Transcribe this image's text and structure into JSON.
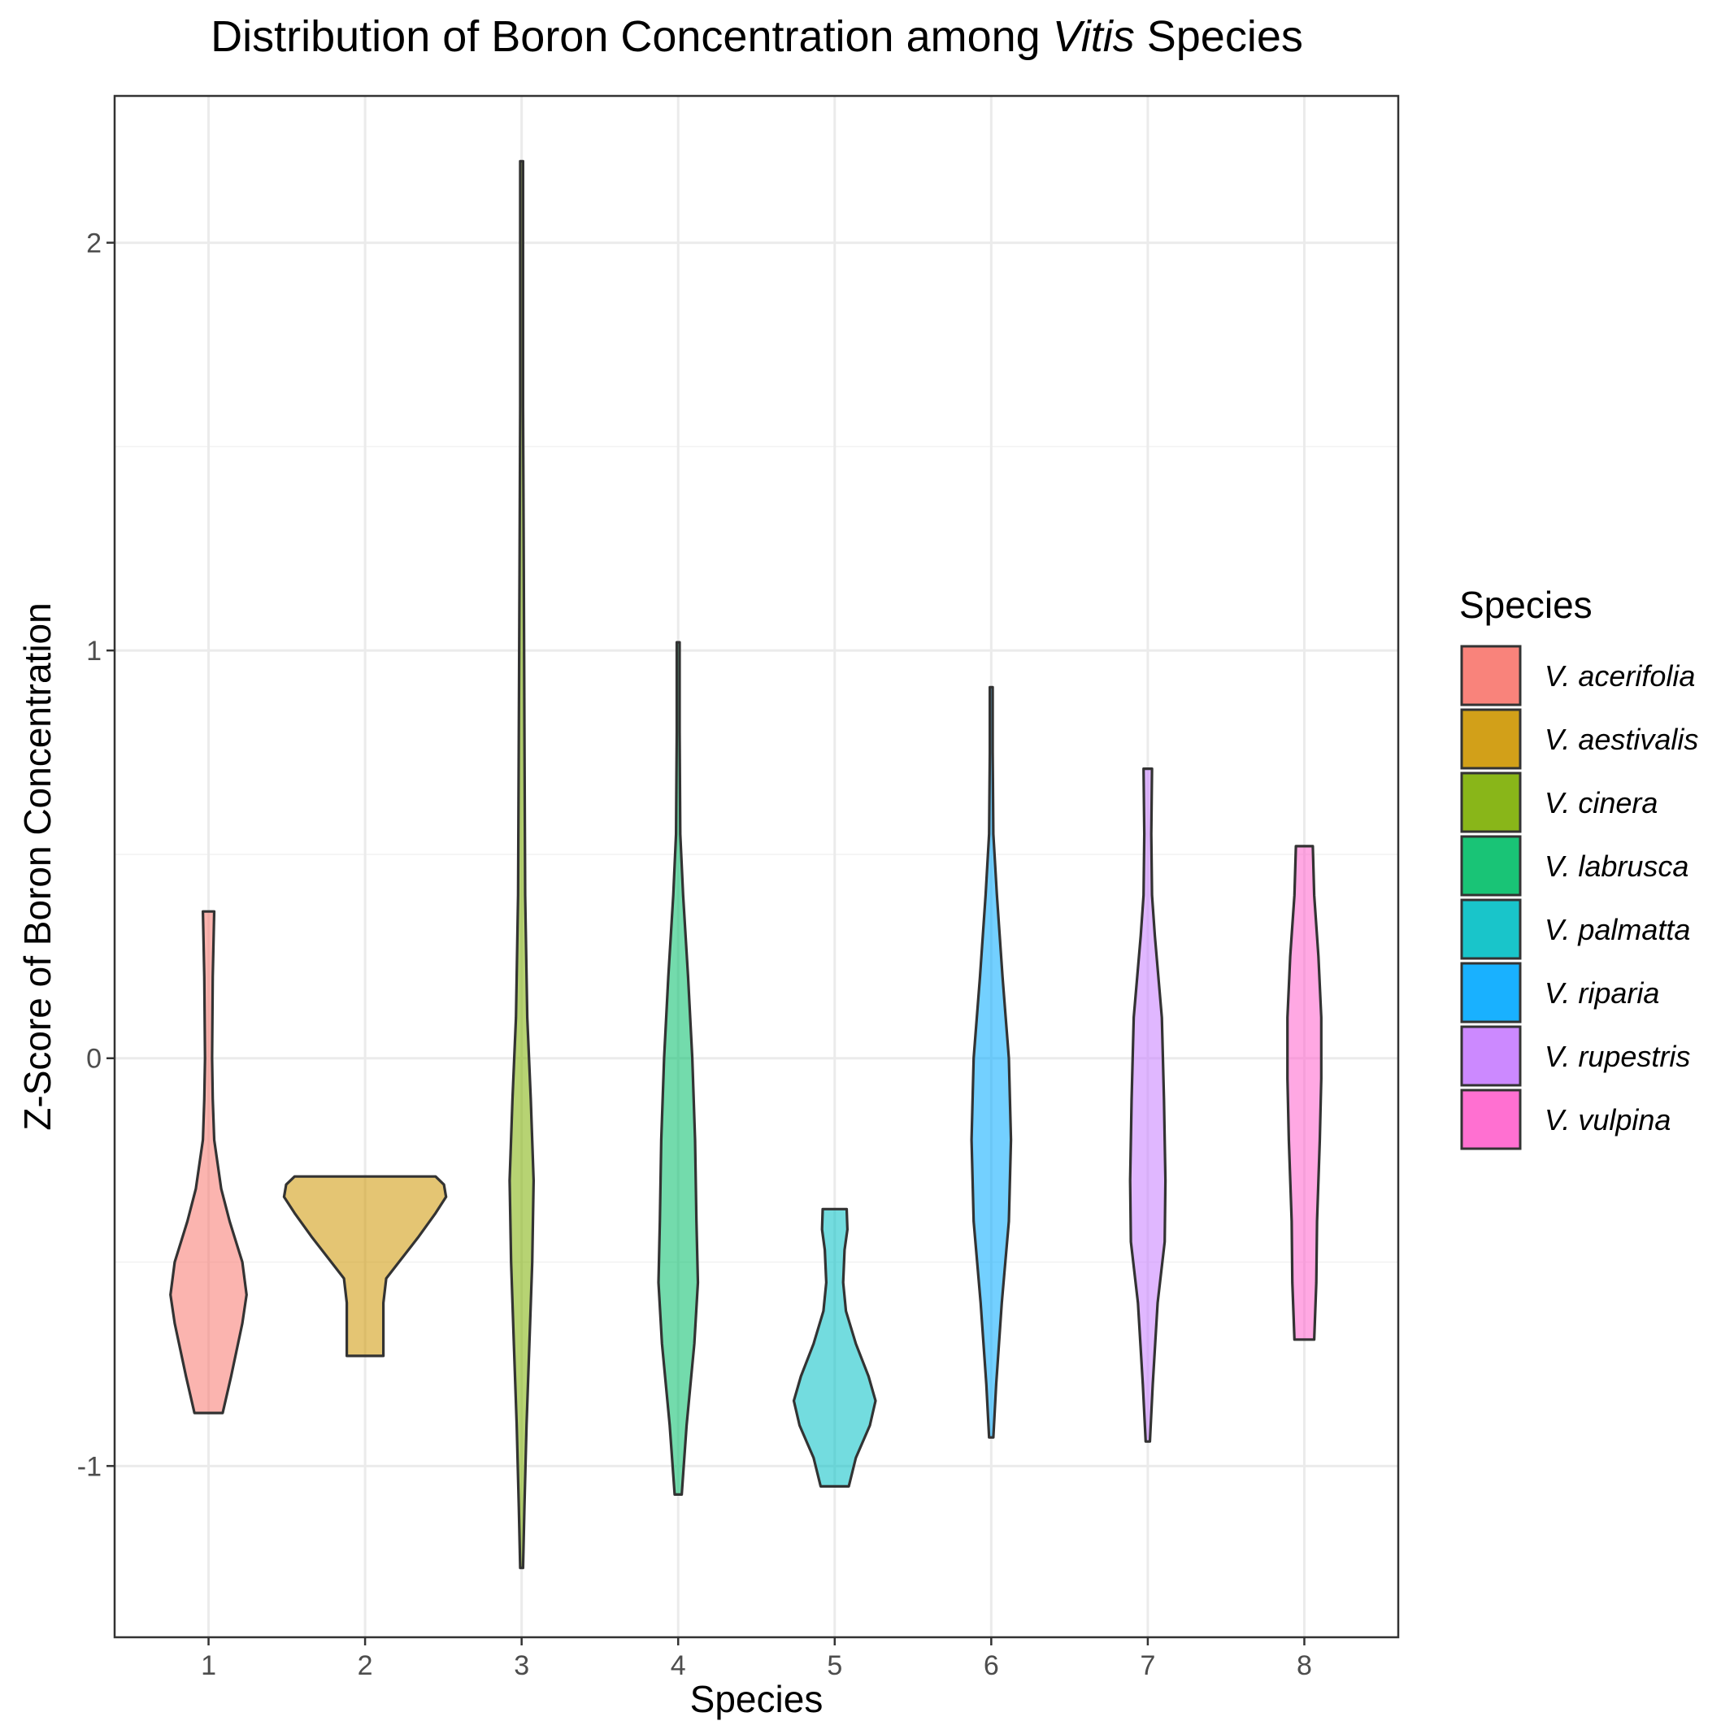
{
  "chart_data": {
    "type": "violin",
    "title_parts": [
      "Distribution of Boron Concentration among ",
      "Vitis",
      " Species"
    ],
    "xlabel": "Species",
    "ylabel": "Z-Score of Boron Concentration",
    "categories": [
      "1",
      "2",
      "3",
      "4",
      "5",
      "6",
      "7",
      "8"
    ],
    "ylim": [
      -1.42,
      2.36
    ],
    "yticks": [
      -1,
      0,
      1,
      2
    ],
    "ytick_labels": [
      "-1",
      "0",
      "1",
      "2"
    ],
    "grid": true,
    "legend": {
      "title": "Species",
      "position": "right",
      "entries": [
        {
          "label": "V. acerifolia",
          "color": "#F8766D"
        },
        {
          "label": "V. aestivalis",
          "color": "#CD9600"
        },
        {
          "label": "V. cinera",
          "color": "#7CAE00"
        },
        {
          "label": "V. labrusca",
          "color": "#00BE67"
        },
        {
          "label": "V. palmatta",
          "color": "#00BFC4"
        },
        {
          "label": "V. riparia",
          "color": "#00A9FF"
        },
        {
          "label": "V. rupestris",
          "color": "#C77CFF"
        },
        {
          "label": "V. vulpina",
          "color": "#FF61CC"
        }
      ]
    },
    "series": [
      {
        "category": "1",
        "min": -0.87,
        "max": 0.36,
        "profile": [
          [
            -0.87,
            0.2
          ],
          [
            -0.78,
            0.32
          ],
          [
            -0.65,
            0.48
          ],
          [
            -0.58,
            0.54
          ],
          [
            -0.5,
            0.48
          ],
          [
            -0.4,
            0.3
          ],
          [
            -0.32,
            0.18
          ],
          [
            -0.2,
            0.08
          ],
          [
            -0.1,
            0.06
          ],
          [
            0.0,
            0.05
          ],
          [
            0.2,
            0.06
          ],
          [
            0.36,
            0.08
          ]
        ]
      },
      {
        "category": "2",
        "min": -0.73,
        "max": -0.29,
        "profile": [
          [
            -0.73,
            0.26
          ],
          [
            -0.66,
            0.26
          ],
          [
            -0.6,
            0.26
          ],
          [
            -0.54,
            0.3
          ],
          [
            -0.5,
            0.48
          ],
          [
            -0.44,
            0.75
          ],
          [
            -0.38,
            1.0
          ],
          [
            -0.34,
            1.15
          ],
          [
            -0.31,
            1.12
          ],
          [
            -0.29,
            1.0
          ]
        ]
      },
      {
        "category": "3",
        "min": -1.25,
        "max": 2.2,
        "profile": [
          [
            -1.25,
            0.02
          ],
          [
            -1.1,
            0.04
          ],
          [
            -0.9,
            0.07
          ],
          [
            -0.7,
            0.11
          ],
          [
            -0.5,
            0.15
          ],
          [
            -0.3,
            0.17
          ],
          [
            -0.1,
            0.13
          ],
          [
            0.1,
            0.08
          ],
          [
            0.4,
            0.05
          ],
          [
            0.8,
            0.04
          ],
          [
            1.2,
            0.03
          ],
          [
            1.6,
            0.02
          ],
          [
            2.0,
            0.02
          ],
          [
            2.2,
            0.02
          ]
        ]
      },
      {
        "category": "4",
        "min": -1.07,
        "max": 1.02,
        "profile": [
          [
            -1.07,
            0.05
          ],
          [
            -0.9,
            0.12
          ],
          [
            -0.7,
            0.23
          ],
          [
            -0.55,
            0.28
          ],
          [
            -0.4,
            0.26
          ],
          [
            -0.2,
            0.24
          ],
          [
            0.0,
            0.2
          ],
          [
            0.2,
            0.14
          ],
          [
            0.4,
            0.07
          ],
          [
            0.55,
            0.03
          ],
          [
            0.8,
            0.02
          ],
          [
            1.02,
            0.02
          ]
        ]
      },
      {
        "category": "5",
        "min": -1.05,
        "max": -0.37,
        "profile": [
          [
            -1.05,
            0.2
          ],
          [
            -0.98,
            0.3
          ],
          [
            -0.9,
            0.5
          ],
          [
            -0.84,
            0.58
          ],
          [
            -0.78,
            0.48
          ],
          [
            -0.7,
            0.3
          ],
          [
            -0.62,
            0.16
          ],
          [
            -0.55,
            0.12
          ],
          [
            -0.47,
            0.14
          ],
          [
            -0.42,
            0.18
          ],
          [
            -0.37,
            0.17
          ]
        ]
      },
      {
        "category": "6",
        "min": -0.93,
        "max": 0.91,
        "profile": [
          [
            -0.93,
            0.03
          ],
          [
            -0.8,
            0.07
          ],
          [
            -0.6,
            0.15
          ],
          [
            -0.4,
            0.25
          ],
          [
            -0.2,
            0.28
          ],
          [
            0.0,
            0.25
          ],
          [
            0.2,
            0.16
          ],
          [
            0.4,
            0.08
          ],
          [
            0.55,
            0.03
          ],
          [
            0.75,
            0.02
          ],
          [
            0.91,
            0.02
          ]
        ]
      },
      {
        "category": "7",
        "min": -0.94,
        "max": 0.71,
        "profile": [
          [
            -0.94,
            0.03
          ],
          [
            -0.8,
            0.07
          ],
          [
            -0.6,
            0.14
          ],
          [
            -0.45,
            0.24
          ],
          [
            -0.3,
            0.25
          ],
          [
            -0.1,
            0.23
          ],
          [
            0.1,
            0.2
          ],
          [
            0.3,
            0.1
          ],
          [
            0.4,
            0.06
          ],
          [
            0.55,
            0.05
          ],
          [
            0.71,
            0.06
          ]
        ]
      },
      {
        "category": "8",
        "min": -0.69,
        "max": 0.52,
        "profile": [
          [
            -0.69,
            0.14
          ],
          [
            -0.55,
            0.17
          ],
          [
            -0.4,
            0.18
          ],
          [
            -0.2,
            0.22
          ],
          [
            -0.05,
            0.24
          ],
          [
            0.1,
            0.24
          ],
          [
            0.25,
            0.2
          ],
          [
            0.4,
            0.14
          ],
          [
            0.52,
            0.12
          ]
        ]
      }
    ]
  }
}
